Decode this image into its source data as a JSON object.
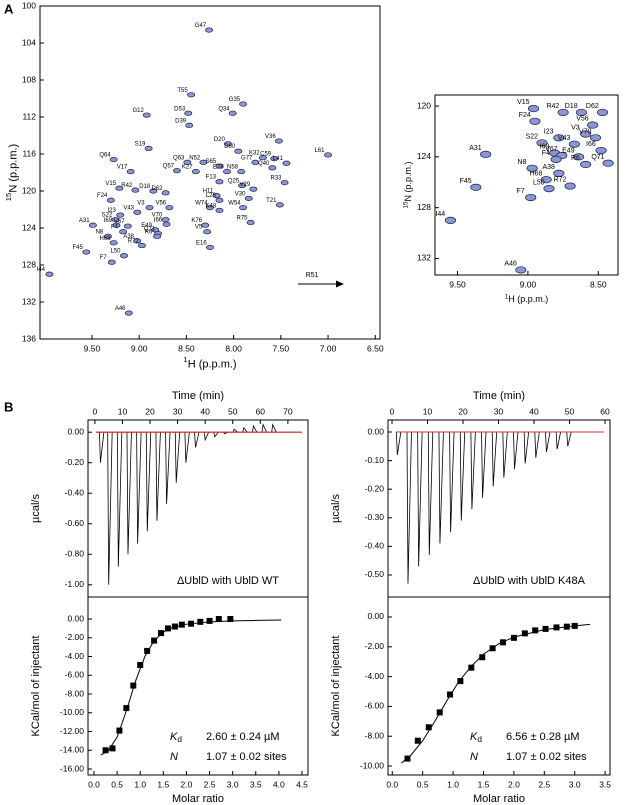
{
  "panel_labels": [
    "A",
    "B"
  ],
  "chart_data": [
    {
      "type": "scatter",
      "marker": "ellipse",
      "color": "#8b97d4",
      "x_reversed": true,
      "y_reversed": true,
      "xlim": [
        6.45,
        10.05
      ],
      "ylim": [
        100,
        136
      ],
      "xticks": [
        {
          "value": 9.5,
          "label": "9.50"
        },
        {
          "value": 9.0,
          "label": "9.00"
        },
        {
          "value": 8.5,
          "label": "8.50"
        },
        {
          "value": 8.0,
          "label": "8.00"
        },
        {
          "value": 7.5,
          "label": "7.50"
        },
        {
          "value": 7.0,
          "label": "7.00"
        },
        {
          "value": 6.5,
          "label": "6.50"
        }
      ],
      "yticks": [
        100,
        104,
        108,
        112,
        116,
        120,
        124,
        128,
        132,
        136
      ],
      "xlabel": {
        "sup": "1",
        "text": "H (p.p.m.)"
      },
      "ylabel": {
        "sup": "15",
        "text": "N (p.p.m.)"
      },
      "labels": [
        "G47",
        "T55",
        "D53",
        "G12",
        "D39",
        "G35",
        "Q34",
        "S19",
        "D20",
        "D60",
        "V36",
        "C59",
        "K32",
        "L61",
        "G77",
        "Q40",
        "L41",
        "Q64",
        "V17",
        "Q63",
        "Q57",
        "N52",
        "K27",
        "S65",
        "E28",
        "N58",
        "F13",
        "Q25",
        "R33",
        "V15",
        "R42",
        "D18",
        "D62",
        "H11",
        "V29",
        "F24",
        "L26",
        "V30",
        "T21",
        "W74",
        "V43",
        "V3",
        "V56",
        "I23",
        "S22",
        "V70",
        "K48",
        "W54",
        "I69",
        "V67",
        "I66",
        "A31",
        "E49",
        "F4",
        "N8",
        "Q71",
        "R6",
        "K76",
        "V5",
        "R75",
        "E16",
        "H68",
        "A38",
        "R72",
        "F45",
        "L50",
        "F7",
        "I44",
        "A46"
      ],
      "x": [
        8.26,
        8.45,
        8.48,
        8.92,
        8.47,
        7.9,
        8.01,
        8.9,
        8.06,
        7.95,
        7.52,
        7.57,
        7.69,
        7.0,
        7.77,
        7.59,
        7.44,
        9.27,
        9.09,
        8.49,
        8.6,
        8.32,
        8.4,
        8.15,
        8.07,
        7.92,
        8.15,
        7.91,
        7.46,
        9.21,
        9.04,
        8.85,
        8.72,
        8.18,
        7.79,
        9.3,
        8.15,
        7.84,
        7.51,
        8.25,
        9.02,
        8.89,
        8.68,
        9.2,
        9.25,
        8.72,
        8.15,
        7.9,
        9.24,
        9.12,
        8.71,
        9.49,
        8.83,
        9.17,
        9.33,
        8.8,
        8.81,
        8.3,
        8.28,
        7.82,
        8.25,
        9.27,
        9.02,
        8.97,
        9.56,
        9.16,
        9.29,
        9.95,
        9.11
      ],
      "y": [
        102.6,
        109.6,
        111.6,
        111.8,
        112.9,
        110.6,
        111.6,
        115.4,
        114.9,
        115.7,
        114.6,
        116.5,
        116.4,
        116.1,
        116.9,
        117.5,
        117.0,
        116.6,
        117.9,
        116.9,
        117.8,
        116.9,
        117.9,
        117.3,
        117.9,
        117.9,
        119.0,
        119.4,
        119.1,
        119.7,
        119.9,
        120.0,
        120.2,
        120.5,
        119.8,
        121.0,
        121.0,
        120.8,
        121.5,
        121.8,
        122.3,
        121.8,
        121.8,
        122.6,
        123.1,
        123.1,
        122.1,
        121.8,
        123.7,
        123.8,
        123.6,
        123.7,
        124.2,
        124.4,
        124.9,
        124.6,
        124.9,
        123.7,
        124.4,
        123.4,
        126.1,
        125.6,
        125.4,
        125.9,
        126.6,
        127.0,
        127.7,
        129.0,
        133.2
      ],
      "annotations": [
        "R51"
      ]
    },
    {
      "type": "scatter",
      "marker": "ellipse",
      "color": "#8b97d4",
      "x_reversed": true,
      "y_reversed": true,
      "xlim": [
        8.36,
        9.66
      ],
      "ylim": [
        119.13,
        133.3
      ],
      "xticks": [
        {
          "value": 9.5,
          "label": "9.50"
        },
        {
          "value": 9.0,
          "label": "9.00"
        },
        {
          "value": 8.5,
          "label": "8.50"
        }
      ],
      "yticks": [
        120,
        124,
        128,
        132
      ],
      "xlabel": {
        "sup": "1",
        "text": "H (p.p.m.)"
      },
      "ylabel": {
        "sup": "15",
        "text": "N (p.p.m.)"
      },
      "labels": [
        "V15",
        "R42",
        "D18",
        "D62",
        "F24",
        "V56",
        "I23",
        "V3",
        "V70",
        "S22",
        "V43",
        "I66",
        "I69",
        "V67",
        "A31",
        "F4",
        "E49",
        "Q71",
        "N8",
        "R6",
        "A38",
        "H68",
        "R72",
        "F45",
        "L50",
        "F7",
        "I44",
        "A46"
      ],
      "x": [
        8.96,
        8.75,
        8.62,
        8.47,
        8.95,
        8.54,
        8.78,
        8.59,
        8.52,
        8.9,
        8.67,
        8.48,
        8.81,
        8.76,
        9.3,
        8.8,
        8.64,
        8.43,
        8.97,
        8.59,
        8.78,
        8.87,
        8.7,
        9.37,
        8.85,
        8.98,
        9.55,
        9.05
      ],
      "y": [
        120.2,
        120.5,
        120.5,
        120.5,
        121.2,
        121.5,
        122.5,
        122.2,
        122.5,
        122.9,
        123.0,
        123.5,
        123.7,
        123.9,
        123.8,
        124.2,
        124.0,
        124.5,
        124.9,
        124.6,
        125.3,
        125.8,
        126.3,
        126.4,
        126.5,
        127.2,
        129.0,
        132.9
      ]
    },
    {
      "type": "spikes",
      "color": "#000000",
      "baseline_color": "#e0302a",
      "x_axis_position": "top",
      "xlim": [
        -2.5,
        77.3
      ],
      "ylim": [
        -1.08,
        0.08
      ],
      "xticks": [
        0,
        10,
        20,
        30,
        40,
        50,
        60,
        70
      ],
      "yticks": [
        {
          "value": 0,
          "label": "0.00"
        },
        {
          "value": -0.2,
          "label": "-0.20"
        },
        {
          "value": -0.4,
          "label": "-0.40"
        },
        {
          "value": -0.6,
          "label": "-0.60"
        },
        {
          "value": -0.8,
          "label": "-0.80"
        },
        {
          "value": -1.0,
          "label": "-1.00"
        }
      ],
      "xlabel": "Time (min)",
      "ylabel": "µcal/s",
      "annotation": "ΔUblD with UblD WT",
      "baseline": 0,
      "x": [
        2,
        5,
        8.5,
        12,
        15.5,
        19,
        22.5,
        26,
        29.5,
        33,
        36.5,
        40,
        43.5,
        47,
        50.5,
        54,
        57.5,
        61,
        64.5
      ],
      "values": [
        -0.2,
        -1.0,
        -0.88,
        -0.8,
        -0.73,
        -0.65,
        -0.58,
        -0.47,
        -0.33,
        -0.2,
        -0.1,
        -0.05,
        -0.03,
        -0.01,
        0.02,
        0.03,
        0.04,
        0.05,
        0.05
      ]
    },
    {
      "type": "scatter",
      "marker": "square",
      "color": "#000000",
      "xlim": [
        -0.13,
        4.63
      ],
      "ylim": [
        -16.64,
        2.35
      ],
      "xticks": [
        {
          "value": 0,
          "label": "0.0"
        },
        0.5,
        {
          "value": 1,
          "label": "1.0"
        },
        1.5,
        {
          "value": 2,
          "label": "2.0"
        },
        2.5,
        {
          "value": 3,
          "label": "3.0"
        },
        3.5,
        {
          "value": 4,
          "label": "4.0"
        },
        4.5
      ],
      "yticks": [
        {
          "value": 0,
          "label": "0.00"
        },
        {
          "value": -2,
          "label": "-2.00"
        },
        {
          "value": -4,
          "label": "-4.00"
        },
        {
          "value": -6,
          "label": "-6.00"
        },
        {
          "value": -8,
          "label": "-8.00"
        },
        {
          "value": -10,
          "label": "-10.00"
        },
        {
          "value": -12,
          "label": "-12.00"
        },
        {
          "value": -14,
          "label": "-14.00"
        },
        {
          "value": -16,
          "label": "-16.00"
        }
      ],
      "xlabel": "Molar ratio",
      "ylabel": "KCal/mol of injectant",
      "x": [
        0.25,
        0.4,
        0.55,
        0.7,
        0.85,
        1.0,
        1.15,
        1.3,
        1.45,
        1.6,
        1.75,
        1.9,
        2.1,
        2.3,
        2.5,
        2.7,
        2.95
      ],
      "values": [
        -14.0,
        -13.8,
        -11.9,
        -9.5,
        -7.1,
        -4.9,
        -3.4,
        -2.3,
        -1.5,
        -1.0,
        -0.8,
        -0.6,
        -0.5,
        -0.3,
        -0.2,
        0.0,
        0.0
      ],
      "fit": {
        "x": [
          0.15,
          0.3,
          0.5,
          0.7,
          0.9,
          1.1,
          1.3,
          1.5,
          1.7,
          2.0,
          2.5,
          3.0,
          3.5,
          4.05
        ],
        "values": [
          -14.5,
          -14.1,
          -12.6,
          -9.8,
          -6.6,
          -4.0,
          -2.3,
          -1.4,
          -0.9,
          -0.55,
          -0.3,
          -0.2,
          -0.15,
          -0.1
        ]
      },
      "fit_params": [
        {
          "symbol": "K",
          "subscript": "d",
          "value": "2.60 ± 0.24 µM"
        },
        {
          "symbol": "N",
          "value": "1.07 ± 0.02 sites"
        }
      ]
    },
    {
      "type": "spikes",
      "color": "#000000",
      "baseline_color": "#e0302a",
      "x_axis_position": "top",
      "xlim": [
        -1.13,
        61.4
      ],
      "ylim": [
        -0.577,
        0.042
      ],
      "xticks": [
        0,
        10,
        20,
        30,
        40,
        50,
        60
      ],
      "yticks": [
        {
          "value": 0,
          "label": "0.00"
        },
        {
          "value": -0.1,
          "label": "-0.10"
        },
        {
          "value": -0.2,
          "label": "-0.20"
        },
        {
          "value": -0.3,
          "label": "-0.30"
        },
        {
          "value": -0.4,
          "label": "-0.40"
        },
        {
          "value": -0.5,
          "label": "-0.50"
        }
      ],
      "xlabel": "Time (min)",
      "ylabel": "µcal/s",
      "annotation": "ΔUblD with UblD K48A",
      "baseline": 0,
      "x": [
        1.5,
        4.5,
        7.5,
        10.5,
        13.5,
        16.5,
        19.5,
        22.5,
        25.5,
        28.5,
        31.5,
        34.5,
        37.5,
        40.5,
        43.5,
        46.5,
        49.5
      ],
      "values": [
        -0.08,
        -0.53,
        -0.47,
        -0.43,
        -0.39,
        -0.35,
        -0.31,
        -0.27,
        -0.23,
        -0.19,
        -0.16,
        -0.13,
        -0.11,
        -0.09,
        -0.07,
        -0.06,
        -0.05
      ]
    },
    {
      "type": "scatter",
      "marker": "square",
      "color": "#000000",
      "xlim": [
        -0.07,
        3.58
      ],
      "ylim": [
        -10.6,
        1.34
      ],
      "xticks": [
        {
          "value": 0,
          "label": "0.0"
        },
        0.5,
        {
          "value": 1,
          "label": "1.0"
        },
        1.5,
        {
          "value": 2,
          "label": "2.0"
        },
        2.5,
        {
          "value": 3,
          "label": "3.0"
        },
        3.5
      ],
      "yticks": [
        {
          "value": 0,
          "label": "0.00"
        },
        {
          "value": -2,
          "label": "-2.00"
        },
        {
          "value": -4,
          "label": "-4.00"
        },
        {
          "value": -6,
          "label": "-6.00"
        },
        {
          "value": -8,
          "label": "-8.00"
        },
        {
          "value": -10,
          "label": "-10.00"
        }
      ],
      "xlabel": "Molar ratio",
      "ylabel": "KCal/mol of injectant",
      "x": [
        0.25,
        0.42,
        0.6,
        0.78,
        0.95,
        1.12,
        1.3,
        1.48,
        1.65,
        1.82,
        2.0,
        2.18,
        2.35,
        2.52,
        2.7,
        2.87,
        3.0
      ],
      "values": [
        -9.5,
        -8.3,
        -7.4,
        -6.4,
        -5.2,
        -4.3,
        -3.4,
        -2.7,
        -2.1,
        -1.7,
        -1.4,
        -1.1,
        -0.9,
        -0.8,
        -0.7,
        -0.65,
        -0.6
      ],
      "fit": {
        "x": [
          0.15,
          0.3,
          0.5,
          0.7,
          0.9,
          1.1,
          1.3,
          1.5,
          1.75,
          2.0,
          2.5,
          3.0,
          3.25
        ],
        "values": [
          -9.8,
          -9.3,
          -8.3,
          -7.0,
          -5.6,
          -4.3,
          -3.3,
          -2.5,
          -1.8,
          -1.35,
          -0.85,
          -0.6,
          -0.5
        ]
      },
      "fit_params": [
        {
          "symbol": "K",
          "subscript": "d",
          "value": "6.56 ± 0.28 µM"
        },
        {
          "symbol": "N",
          "value": "1.07 ± 0.02 sites"
        }
      ]
    }
  ]
}
